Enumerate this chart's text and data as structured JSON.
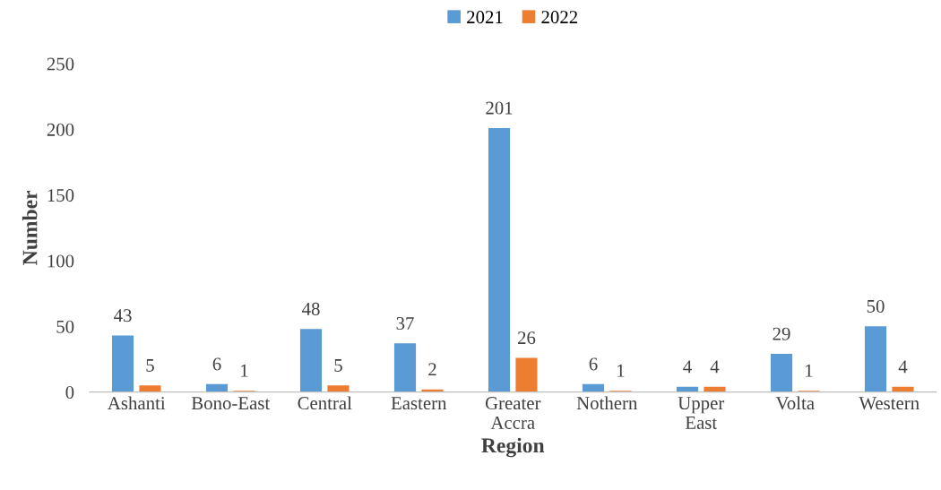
{
  "chart_data": {
    "type": "bar",
    "xlabel": "Region",
    "ylabel": "Number",
    "categories": [
      "Ashanti",
      "Bono-East",
      "Central",
      "Eastern",
      "Greater Accra",
      "Nothern",
      "Upper East",
      "Volta",
      "Western"
    ],
    "series": [
      {
        "name": "2021",
        "color": "#5b9bd5",
        "values": [
          43,
          6,
          48,
          37,
          201,
          6,
          4,
          29,
          50
        ]
      },
      {
        "name": "2022",
        "color": "#ed7d31",
        "values": [
          5,
          1,
          5,
          2,
          26,
          1,
          4,
          1,
          4
        ]
      }
    ],
    "ylim": [
      0,
      250
    ],
    "yticks": [
      0,
      50,
      100,
      150,
      200,
      250
    ],
    "data_labels": true,
    "legend": "top",
    "grid": false
  }
}
